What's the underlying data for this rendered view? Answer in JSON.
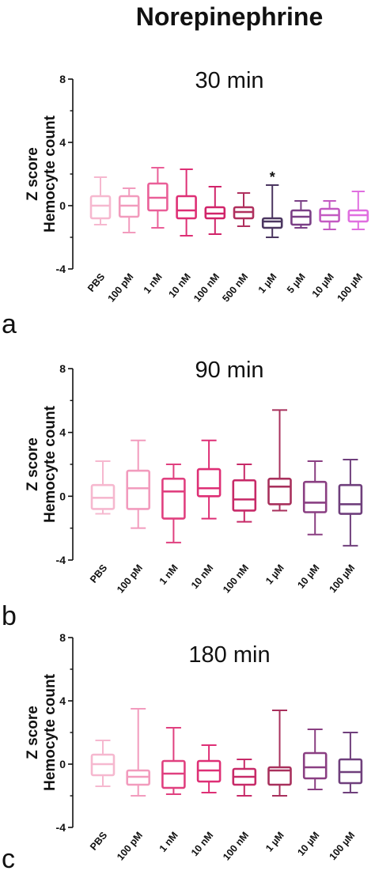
{
  "figure": {
    "title": "Norepinephrine"
  },
  "chart_data": [
    {
      "type": "box",
      "panel": "a",
      "title": "30 min",
      "ylabel": [
        "Z score",
        "Hemocyte count"
      ],
      "ylim": [
        -4,
        8
      ],
      "yticks": [
        "-4",
        "0",
        "4",
        "8"
      ],
      "categories": [
        "PBS",
        "100 pM",
        "1 nM",
        "10 nM",
        "100 nM",
        "500 nM",
        "1 µM",
        "5 µM",
        "10 µM",
        "100 µM"
      ],
      "colors": [
        "#f6b8cf",
        "#f29bbd",
        "#ea5f98",
        "#de2f75",
        "#d1246a",
        "#b0305e",
        "#4b3660",
        "#7a3f86",
        "#c35ac2",
        "#e06fe0"
      ],
      "boxes": [
        {
          "min": -1.2,
          "q1": -0.8,
          "median": 0.0,
          "q3": 0.6,
          "max": 1.8
        },
        {
          "min": -1.7,
          "q1": -0.7,
          "median": 0.0,
          "q3": 0.6,
          "max": 1.1
        },
        {
          "min": -1.4,
          "q1": -0.3,
          "median": 0.5,
          "q3": 1.4,
          "max": 2.4
        },
        {
          "min": -1.9,
          "q1": -0.8,
          "median": -0.3,
          "q3": 0.6,
          "max": 2.3
        },
        {
          "min": -1.8,
          "q1": -0.8,
          "median": -0.5,
          "q3": -0.1,
          "max": 1.2
        },
        {
          "min": -1.3,
          "q1": -0.8,
          "median": -0.4,
          "q3": -0.1,
          "max": 0.8
        },
        {
          "min": -2.0,
          "q1": -1.4,
          "median": -1.0,
          "q3": -0.8,
          "max": 1.3
        },
        {
          "min": -1.4,
          "q1": -1.2,
          "median": -0.7,
          "q3": -0.3,
          "max": 0.3
        },
        {
          "min": -1.5,
          "q1": -1.0,
          "median": -0.6,
          "q3": -0.2,
          "max": 0.3
        },
        {
          "min": -1.5,
          "q1": -1.0,
          "median": -0.6,
          "q3": -0.3,
          "max": 0.9
        }
      ],
      "annotations": [
        {
          "category": "1 µM",
          "text": "*"
        }
      ]
    },
    {
      "type": "box",
      "panel": "b",
      "title": "90 min",
      "ylabel": [
        "Z score",
        "Hemocyte count"
      ],
      "ylim": [
        -4,
        8
      ],
      "yticks": [
        "-4",
        "0",
        "4",
        "8"
      ],
      "categories": [
        "PBS",
        "100 pM",
        "1 nM",
        "10 nM",
        "100 nM",
        "1 µM",
        "10 µM",
        "100 µM"
      ],
      "colors": [
        "#f6b8cf",
        "#f29bbd",
        "#e0407f",
        "#de2f75",
        "#c72a68",
        "#a8305c",
        "#8a3f82",
        "#6f3f7c"
      ],
      "boxes": [
        {
          "min": -1.1,
          "q1": -0.8,
          "median": -0.1,
          "q3": 0.7,
          "max": 2.2
        },
        {
          "min": -2.0,
          "q1": -0.8,
          "median": 0.5,
          "q3": 1.6,
          "max": 3.5
        },
        {
          "min": -2.9,
          "q1": -1.4,
          "median": 0.3,
          "q3": 1.1,
          "max": 2.0
        },
        {
          "min": -1.4,
          "q1": 0.0,
          "median": 0.5,
          "q3": 1.7,
          "max": 3.5
        },
        {
          "min": -1.6,
          "q1": -0.9,
          "median": -0.2,
          "q3": 1.0,
          "max": 2.0
        },
        {
          "min": -0.9,
          "q1": -0.5,
          "median": 0.6,
          "q3": 1.1,
          "max": 5.4
        },
        {
          "min": -2.4,
          "q1": -1.0,
          "median": -0.4,
          "q3": 0.9,
          "max": 2.2
        },
        {
          "min": -3.1,
          "q1": -1.1,
          "median": -0.5,
          "q3": 0.7,
          "max": 2.3
        }
      ]
    },
    {
      "type": "box",
      "panel": "c",
      "title": "180 min",
      "ylabel": [
        "Z score",
        "Hemocyte count"
      ],
      "ylim": [
        -4,
        8
      ],
      "yticks": [
        "-4",
        "0",
        "4",
        "8"
      ],
      "categories": [
        "PBS",
        "100 pM",
        "1 nM",
        "10 nM",
        "100 nM",
        "1 µM",
        "10 µM",
        "100 µM"
      ],
      "colors": [
        "#f6b8cf",
        "#f29bbd",
        "#e0407f",
        "#de2f75",
        "#c72a68",
        "#a8305c",
        "#8a3f82",
        "#6f3f7c"
      ],
      "boxes": [
        {
          "min": -1.4,
          "q1": -0.7,
          "median": 0.0,
          "q3": 0.6,
          "max": 1.5
        },
        {
          "min": -2.0,
          "q1": -1.3,
          "median": -0.8,
          "q3": -0.4,
          "max": 3.5
        },
        {
          "min": -1.9,
          "q1": -1.5,
          "median": -0.6,
          "q3": 0.2,
          "max": 2.3
        },
        {
          "min": -1.8,
          "q1": -1.1,
          "median": -0.4,
          "q3": 0.2,
          "max": 1.2
        },
        {
          "min": -2.0,
          "q1": -1.3,
          "median": -0.8,
          "q3": -0.3,
          "max": 0.3
        },
        {
          "min": -2.0,
          "q1": -1.3,
          "median": -0.4,
          "q3": -0.2,
          "max": 3.4
        },
        {
          "min": -1.6,
          "q1": -0.9,
          "median": -0.2,
          "q3": 0.7,
          "max": 2.2
        },
        {
          "min": -1.8,
          "q1": -1.2,
          "median": -0.5,
          "q3": 0.3,
          "max": 2.0
        }
      ]
    }
  ]
}
